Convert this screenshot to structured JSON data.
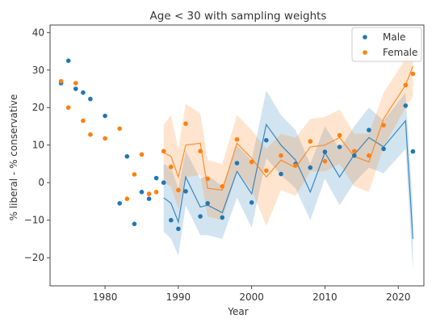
{
  "colors": {
    "male": "#1f77b4",
    "female": "#ff7f0e",
    "male_band": "#1f77b4",
    "female_band": "#ff7f0e"
  },
  "chart_data": {
    "type": "scatter",
    "title": "Age < 30 with sampling weights",
    "xlabel": "Year",
    "ylabel": "% liberal - % conservative",
    "xlim": [
      1972.5,
      2023.5
    ],
    "ylim": [
      -27.5,
      42
    ],
    "xticks": [
      1980,
      1990,
      2000,
      2010,
      2020
    ],
    "xtick_labels": [
      "1980",
      "1990",
      "2000",
      "2010",
      "2020"
    ],
    "yticks": [
      -20,
      -10,
      0,
      10,
      20,
      30,
      40
    ],
    "ytick_labels": [
      "−20",
      "−10",
      "0",
      "10",
      "20",
      "30",
      "40"
    ],
    "grid": false,
    "legend": {
      "position": "top-right",
      "entries": [
        "Male",
        "Female"
      ]
    },
    "series": [
      {
        "name": "Male",
        "points": [
          [
            1974,
            26.5
          ],
          [
            1975,
            32.5
          ],
          [
            1976,
            25.0
          ],
          [
            1977,
            24.0
          ],
          [
            1978,
            22.3
          ],
          [
            1980,
            17.8
          ],
          [
            1982,
            -5.5
          ],
          [
            1983,
            7.0
          ],
          [
            1984,
            -11.0
          ],
          [
            1985,
            -2.5
          ],
          [
            1986,
            -4.3
          ],
          [
            1987,
            1.2
          ],
          [
            1988,
            0.0
          ],
          [
            1989,
            -10.0
          ],
          [
            1990,
            -12.3
          ],
          [
            1991,
            -2.3
          ],
          [
            1993,
            -9.0
          ],
          [
            1994,
            -5.5
          ],
          [
            1996,
            -9.3
          ],
          [
            1998,
            5.2
          ],
          [
            2000,
            -5.3
          ],
          [
            2002,
            11.3
          ],
          [
            2004,
            2.3
          ],
          [
            2006,
            5.0
          ],
          [
            2008,
            4.0
          ],
          [
            2010,
            8.2
          ],
          [
            2012,
            9.5
          ],
          [
            2014,
            7.2
          ],
          [
            2016,
            14.0
          ],
          [
            2018,
            9.0
          ],
          [
            2021,
            20.5
          ],
          [
            2022,
            8.3
          ]
        ],
        "smooth": [
          [
            1988,
            -4.0
          ],
          [
            1989,
            -5.5
          ],
          [
            1990,
            -10.5
          ],
          [
            1991,
            1.5
          ],
          [
            1993,
            -6.5
          ],
          [
            1994,
            -6.0
          ],
          [
            1996,
            -8.0
          ],
          [
            1998,
            3.0
          ],
          [
            2000,
            -3.0
          ],
          [
            2002,
            15.5
          ],
          [
            2004,
            10.0
          ],
          [
            2006,
            6.0
          ],
          [
            2008,
            -2.5
          ],
          [
            2010,
            8.0
          ],
          [
            2012,
            1.5
          ],
          [
            2014,
            7.5
          ],
          [
            2016,
            12.0
          ],
          [
            2018,
            9.5
          ],
          [
            2021,
            16.5
          ],
          [
            2022,
            -15.0
          ]
        ],
        "band": [
          [
            1988,
            -13.0,
            5.0
          ],
          [
            1989,
            -15.0,
            4.0
          ],
          [
            1990,
            -19.5,
            -1.5
          ],
          [
            1991,
            -6.0,
            8.5
          ],
          [
            1993,
            -14.0,
            1.0
          ],
          [
            1994,
            -14.0,
            2.0
          ],
          [
            1996,
            -15.0,
            -1.0
          ],
          [
            1998,
            -4.0,
            10.0
          ],
          [
            2000,
            -12.0,
            6.0
          ],
          [
            2002,
            6.5,
            24.5
          ],
          [
            2004,
            2.0,
            18.0
          ],
          [
            2006,
            -1.5,
            14.0
          ],
          [
            2008,
            -10.0,
            5.0
          ],
          [
            2010,
            1.0,
            15.0
          ],
          [
            2012,
            -6.0,
            9.0
          ],
          [
            2014,
            0.0,
            15.0
          ],
          [
            2016,
            4.0,
            20.0
          ],
          [
            2018,
            2.5,
            16.5
          ],
          [
            2021,
            9.0,
            24.0
          ],
          [
            2022,
            -23.5,
            -6.5
          ]
        ]
      },
      {
        "name": "Female",
        "points": [
          [
            1974,
            27.0
          ],
          [
            1975,
            20.0
          ],
          [
            1976,
            26.5
          ],
          [
            1977,
            16.5
          ],
          [
            1978,
            12.8
          ],
          [
            1980,
            11.8
          ],
          [
            1982,
            14.4
          ],
          [
            1983,
            -4.3
          ],
          [
            1984,
            2.2
          ],
          [
            1985,
            7.5
          ],
          [
            1986,
            -3.0
          ],
          [
            1987,
            -2.5
          ],
          [
            1988,
            8.4
          ],
          [
            1989,
            4.2
          ],
          [
            1990,
            -2.0
          ],
          [
            1991,
            15.7
          ],
          [
            1993,
            8.4
          ],
          [
            1994,
            1.0
          ],
          [
            1996,
            -1.0
          ],
          [
            1998,
            11.5
          ],
          [
            2000,
            5.5
          ],
          [
            2002,
            3.2
          ],
          [
            2004,
            7.2
          ],
          [
            2006,
            4.6
          ],
          [
            2008,
            11.0
          ],
          [
            2010,
            5.7
          ],
          [
            2012,
            12.6
          ],
          [
            2014,
            8.4
          ],
          [
            2016,
            7.2
          ],
          [
            2018,
            15.3
          ],
          [
            2021,
            26.0
          ],
          [
            2022,
            29.0
          ]
        ],
        "smooth": [
          [
            1988,
            8.0
          ],
          [
            1989,
            7.0
          ],
          [
            1990,
            1.5
          ],
          [
            1991,
            10.0
          ],
          [
            1993,
            10.5
          ],
          [
            1994,
            -1.5
          ],
          [
            1996,
            -2.0
          ],
          [
            1998,
            10.5
          ],
          [
            2000,
            6.5
          ],
          [
            2002,
            1.5
          ],
          [
            2004,
            6.0
          ],
          [
            2006,
            4.0
          ],
          [
            2008,
            9.5
          ],
          [
            2010,
            10.0
          ],
          [
            2012,
            12.0
          ],
          [
            2014,
            7.0
          ],
          [
            2016,
            5.5
          ],
          [
            2018,
            17.0
          ],
          [
            2021,
            26.0
          ],
          [
            2022,
            31.0
          ]
        ],
        "band": [
          [
            1988,
            0.0,
            15.5
          ],
          [
            1989,
            -1.0,
            18.0
          ],
          [
            1990,
            -7.0,
            9.0
          ],
          [
            1991,
            1.5,
            21.0
          ],
          [
            1993,
            2.0,
            18.5
          ],
          [
            1994,
            -9.0,
            6.0
          ],
          [
            1996,
            -10.0,
            5.0
          ],
          [
            1998,
            3.0,
            18.0
          ],
          [
            2000,
            -2.0,
            14.0
          ],
          [
            2002,
            -11.5,
            9.0
          ],
          [
            2004,
            -2.0,
            13.0
          ],
          [
            2006,
            -3.5,
            12.0
          ],
          [
            2008,
            3.0,
            17.0
          ],
          [
            2010,
            3.0,
            17.5
          ],
          [
            2012,
            5.0,
            19.5
          ],
          [
            2014,
            -1.0,
            13.0
          ],
          [
            2016,
            -2.5,
            13.0
          ],
          [
            2018,
            9.5,
            24.0
          ],
          [
            2021,
            20.0,
            33.0
          ],
          [
            2022,
            23.0,
            38.0
          ]
        ]
      }
    ]
  }
}
